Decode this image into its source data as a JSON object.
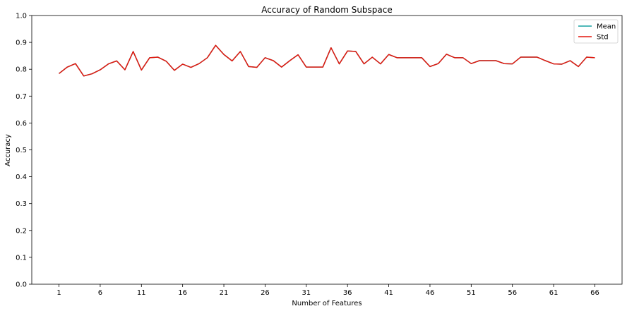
{
  "chart_data": {
    "type": "line",
    "title": "Accuracy of Random Subspace",
    "xlabel": "Number of Features",
    "ylabel": "Accuracy",
    "xlim": [
      -2.3,
      69.3
    ],
    "ylim": [
      0.0,
      1.0
    ],
    "xticks": [
      1,
      6,
      11,
      16,
      21,
      26,
      31,
      36,
      41,
      46,
      51,
      56,
      61,
      66
    ],
    "yticks": [
      "0.0",
      "0.1",
      "0.2",
      "0.3",
      "0.4",
      "0.5",
      "0.6",
      "0.7",
      "0.8",
      "0.9",
      "1.0"
    ],
    "grid": false,
    "legend_position": "top-right",
    "x": [
      1,
      2,
      3,
      4,
      5,
      6,
      7,
      8,
      9,
      10,
      11,
      12,
      13,
      14,
      15,
      16,
      17,
      18,
      19,
      20,
      21,
      22,
      23,
      24,
      25,
      26,
      27,
      28,
      29,
      30,
      31,
      32,
      33,
      34,
      35,
      36,
      37,
      38,
      39,
      40,
      41,
      42,
      43,
      44,
      45,
      46,
      47,
      48,
      49,
      50,
      51,
      52,
      53,
      54,
      55,
      56,
      57,
      58,
      59,
      60,
      61,
      62,
      63,
      64,
      65,
      66
    ],
    "series": [
      {
        "name": "Mean",
        "color": "#17a2a2",
        "values": [
          0.784,
          0.808,
          0.821,
          0.775,
          0.783,
          0.798,
          0.82,
          0.831,
          0.798,
          0.866,
          0.797,
          0.843,
          0.845,
          0.83,
          0.796,
          0.819,
          0.807,
          0.821,
          0.843,
          0.889,
          0.855,
          0.831,
          0.866,
          0.81,
          0.807,
          0.843,
          0.832,
          0.808,
          0.832,
          0.854,
          0.808,
          0.808,
          0.808,
          0.88,
          0.82,
          0.868,
          0.866,
          0.82,
          0.845,
          0.82,
          0.855,
          0.843,
          0.843,
          0.843,
          0.843,
          0.81,
          0.821,
          0.856,
          0.843,
          0.843,
          0.821,
          0.832,
          0.832,
          0.832,
          0.821,
          0.82,
          0.845,
          0.845,
          0.845,
          0.832,
          0.82,
          0.819,
          0.832,
          0.81,
          0.845,
          0.843
        ]
      },
      {
        "name": "Std",
        "color": "#e3170d",
        "values": [
          0.784,
          0.808,
          0.821,
          0.775,
          0.783,
          0.798,
          0.82,
          0.831,
          0.798,
          0.866,
          0.797,
          0.843,
          0.845,
          0.83,
          0.796,
          0.819,
          0.807,
          0.821,
          0.843,
          0.889,
          0.855,
          0.831,
          0.866,
          0.81,
          0.807,
          0.843,
          0.832,
          0.808,
          0.832,
          0.854,
          0.808,
          0.808,
          0.808,
          0.88,
          0.82,
          0.868,
          0.866,
          0.82,
          0.845,
          0.82,
          0.855,
          0.843,
          0.843,
          0.843,
          0.843,
          0.81,
          0.821,
          0.856,
          0.843,
          0.843,
          0.821,
          0.832,
          0.832,
          0.832,
          0.821,
          0.82,
          0.845,
          0.845,
          0.845,
          0.832,
          0.82,
          0.819,
          0.832,
          0.81,
          0.845,
          0.843
        ]
      }
    ]
  }
}
